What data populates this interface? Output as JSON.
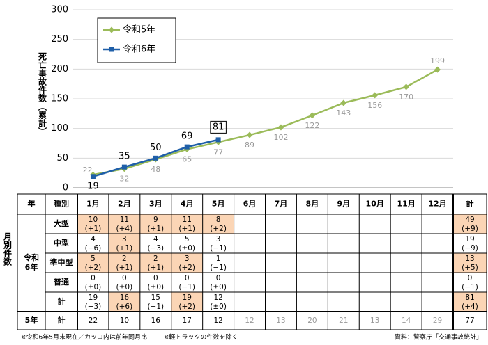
{
  "chart_data": {
    "type": "line",
    "y_label": "死亡事故件数（累計）",
    "ylim": [
      0,
      300
    ],
    "yticks": [
      0,
      50,
      100,
      150,
      200,
      250,
      300
    ],
    "grid": true,
    "series": [
      {
        "name": "令和5年",
        "color": "#9bbb59",
        "label_color": "#999999",
        "marker": "diamond",
        "values": [
          22,
          32,
          48,
          65,
          77,
          89,
          102,
          122,
          143,
          156,
          170,
          199
        ]
      },
      {
        "name": "令和6年",
        "color": "#1f5fa8",
        "label_color": "#000000",
        "marker": "square",
        "values": [
          19,
          35,
          50,
          69,
          81
        ]
      }
    ]
  },
  "table": {
    "side_label": "月別件数",
    "header": [
      "年",
      "種別",
      "1月",
      "2月",
      "3月",
      "4月",
      "5月",
      "6月",
      "7月",
      "8月",
      "9月",
      "10月",
      "11月",
      "12月",
      "計"
    ],
    "group_label": "令和6年",
    "highlight_color": "#fbd5b5",
    "rows": [
      {
        "label": "大型",
        "cells": [
          [
            10,
            "(+1)"
          ],
          [
            11,
            "(+4)"
          ],
          [
            9,
            "(+1)"
          ],
          [
            11,
            "(+1)"
          ],
          [
            8,
            "(+2)"
          ]
        ],
        "total": [
          49,
          "(+9)"
        ]
      },
      {
        "label": "中型",
        "cells": [
          [
            4,
            "(−6)"
          ],
          [
            3,
            "(+1)"
          ],
          [
            4,
            "(−3)"
          ],
          [
            5,
            "(±0)"
          ],
          [
            3,
            "(−1)"
          ]
        ],
        "total": [
          19,
          "(−9)"
        ]
      },
      {
        "label": "準中型",
        "cells": [
          [
            5,
            "(+2)"
          ],
          [
            2,
            "(+1)"
          ],
          [
            2,
            "(+1)"
          ],
          [
            3,
            "(+2)"
          ],
          [
            1,
            "(−1)"
          ]
        ],
        "total": [
          13,
          "(+5)"
        ]
      },
      {
        "label": "普通",
        "cells": [
          [
            0,
            "(±0)"
          ],
          [
            0,
            "(±0)"
          ],
          [
            0,
            "(±0)"
          ],
          [
            0,
            "(−1)"
          ],
          [
            0,
            "(±0)"
          ]
        ],
        "total": [
          0,
          "(−1)"
        ]
      },
      {
        "label": "計",
        "cells": [
          [
            19,
            "(−3)"
          ],
          [
            16,
            "(+6)"
          ],
          [
            15,
            "(−1)"
          ],
          [
            19,
            "(+2)"
          ],
          [
            12,
            "(±0)"
          ]
        ],
        "total": [
          81,
          "(+4)"
        ]
      }
    ],
    "prev_row": {
      "year": "5年",
      "label": "計",
      "cells": [
        22,
        10,
        16,
        17,
        12,
        12,
        13,
        20,
        21,
        13,
        14,
        29
      ],
      "total": 77
    }
  },
  "footnotes": [
    "※令和6年5月末現在／カッコ内は前年同月比",
    "※軽トラックの件数を除く"
  ],
  "source": "資料：警察庁「交通事故統計」"
}
